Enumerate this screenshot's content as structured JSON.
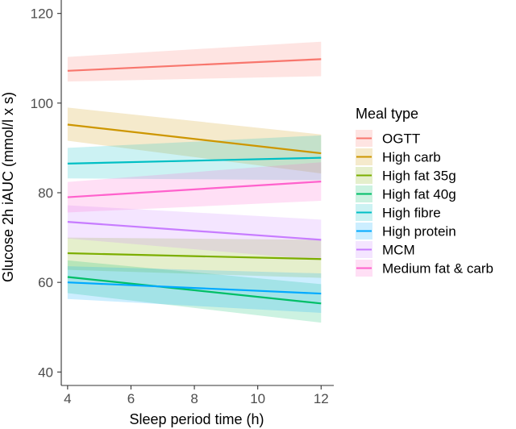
{
  "chart_data": {
    "type": "line",
    "xlabel": "Sleep period time (h)",
    "ylabel": "Glucose 2h iAUC (mmol/l x s)",
    "xlim": [
      3.8,
      12.4
    ],
    "ylim": [
      37,
      123
    ],
    "xticks": [
      4,
      6,
      8,
      10,
      12
    ],
    "yticks": [
      40,
      60,
      80,
      100,
      120
    ],
    "grid": false,
    "legend": {
      "title": "Meal type",
      "position": "right"
    },
    "series": [
      {
        "name": "OGTT",
        "color": "#F8766D",
        "x": [
          4,
          12
        ],
        "y": [
          107.2,
          109.8
        ],
        "ci_low": [
          104.8,
          106.0
        ],
        "ci_high": [
          110.3,
          113.7
        ]
      },
      {
        "name": "High carb",
        "color": "#CD9600",
        "x": [
          4,
          12
        ],
        "y": [
          95.2,
          88.8
        ],
        "ci_low": [
          91.6,
          84.3
        ],
        "ci_high": [
          99.0,
          93.0
        ]
      },
      {
        "name": "High fat 35g",
        "color": "#7CAE00",
        "x": [
          4,
          12
        ],
        "y": [
          66.5,
          65.2
        ],
        "ci_low": [
          62.8,
          61.0
        ],
        "ci_high": [
          70.0,
          69.5
        ]
      },
      {
        "name": "High fat 40g",
        "color": "#00BE67",
        "x": [
          4,
          12
        ],
        "y": [
          61.2,
          55.3
        ],
        "ci_low": [
          57.6,
          51.0
        ],
        "ci_high": [
          64.9,
          59.6
        ]
      },
      {
        "name": "High fibre",
        "color": "#00BFC4",
        "x": [
          4,
          12
        ],
        "y": [
          86.5,
          87.8
        ],
        "ci_low": [
          83.2,
          82.8
        ],
        "ci_high": [
          90.0,
          92.8
        ]
      },
      {
        "name": "High protein",
        "color": "#00A9FF",
        "x": [
          4,
          12
        ],
        "y": [
          60.0,
          57.5
        ],
        "ci_low": [
          56.3,
          53.2
        ],
        "ci_high": [
          63.6,
          62.0
        ]
      },
      {
        "name": "MCM",
        "color": "#C77CFF",
        "x": [
          4,
          12
        ],
        "y": [
          73.5,
          69.5
        ],
        "ci_low": [
          69.8,
          65.0
        ],
        "ci_high": [
          77.2,
          74.0
        ]
      },
      {
        "name": "Medium fat & carb",
        "color": "#FF61CC",
        "x": [
          4,
          12
        ],
        "y": [
          79.0,
          82.5
        ],
        "ci_low": [
          75.6,
          78.2
        ],
        "ci_high": [
          82.4,
          86.8
        ]
      }
    ]
  }
}
